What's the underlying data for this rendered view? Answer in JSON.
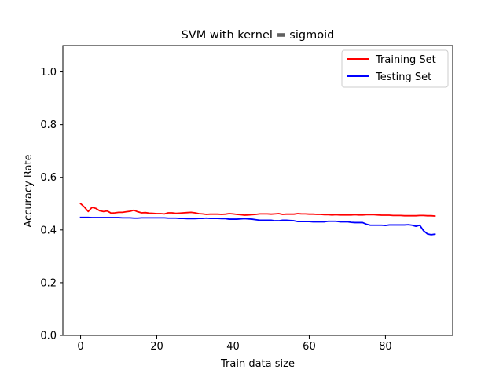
{
  "chart_data": {
    "type": "line",
    "title": "SVM with kernel = sigmoid",
    "xlabel": "Train data size",
    "ylabel": "Accuracy Rate",
    "xlim": [
      -4.65,
      97.65
    ],
    "ylim": [
      0.0,
      1.1
    ],
    "xticks": [
      0,
      20,
      40,
      60,
      80
    ],
    "xtick_labels": [
      "0",
      "20",
      "40",
      "60",
      "80"
    ],
    "yticks": [
      0.0,
      0.2,
      0.4,
      0.6,
      0.8,
      1.0
    ],
    "ytick_labels": [
      "0.0",
      "0.2",
      "0.4",
      "0.6",
      "0.8",
      "1.0"
    ],
    "grid": false,
    "legend_position": "top-right",
    "series": [
      {
        "name": "Training Set",
        "color": "#ff0000",
        "x": [
          0,
          1,
          2,
          3,
          4,
          5,
          6,
          7,
          8,
          9,
          10,
          11,
          12,
          13,
          14,
          15,
          16,
          17,
          18,
          19,
          20,
          21,
          22,
          23,
          24,
          25,
          26,
          27,
          28,
          29,
          30,
          31,
          32,
          33,
          34,
          35,
          36,
          37,
          38,
          39,
          40,
          41,
          42,
          43,
          44,
          45,
          46,
          47,
          48,
          49,
          50,
          51,
          52,
          53,
          54,
          55,
          56,
          57,
          58,
          59,
          60,
          61,
          62,
          63,
          64,
          65,
          66,
          67,
          68,
          69,
          70,
          71,
          72,
          73,
          74,
          75,
          76,
          77,
          78,
          79,
          80,
          81,
          82,
          83,
          84,
          85,
          86,
          87,
          88,
          89,
          90,
          91,
          92,
          93
        ],
        "values": [
          0.5,
          0.487,
          0.47,
          0.486,
          0.482,
          0.473,
          0.47,
          0.472,
          0.464,
          0.465,
          0.467,
          0.467,
          0.469,
          0.471,
          0.475,
          0.469,
          0.465,
          0.466,
          0.464,
          0.463,
          0.462,
          0.462,
          0.461,
          0.465,
          0.465,
          0.463,
          0.464,
          0.465,
          0.466,
          0.467,
          0.465,
          0.462,
          0.461,
          0.459,
          0.46,
          0.46,
          0.46,
          0.459,
          0.46,
          0.462,
          0.461,
          0.459,
          0.458,
          0.456,
          0.457,
          0.458,
          0.459,
          0.461,
          0.461,
          0.461,
          0.46,
          0.461,
          0.462,
          0.459,
          0.46,
          0.46,
          0.46,
          0.462,
          0.461,
          0.461,
          0.46,
          0.46,
          0.459,
          0.459,
          0.458,
          0.458,
          0.457,
          0.458,
          0.457,
          0.457,
          0.457,
          0.457,
          0.458,
          0.457,
          0.457,
          0.458,
          0.458,
          0.458,
          0.457,
          0.456,
          0.456,
          0.456,
          0.455,
          0.455,
          0.455,
          0.454,
          0.454,
          0.454,
          0.454,
          0.455,
          0.455,
          0.454,
          0.454,
          0.453
        ]
      },
      {
        "name": "Testing Set",
        "color": "#0000ff",
        "x": [
          0,
          1,
          2,
          3,
          4,
          5,
          6,
          7,
          8,
          9,
          10,
          11,
          12,
          13,
          14,
          15,
          16,
          17,
          18,
          19,
          20,
          21,
          22,
          23,
          24,
          25,
          26,
          27,
          28,
          29,
          30,
          31,
          32,
          33,
          34,
          35,
          36,
          37,
          38,
          39,
          40,
          41,
          42,
          43,
          44,
          45,
          46,
          47,
          48,
          49,
          50,
          51,
          52,
          53,
          54,
          55,
          56,
          57,
          58,
          59,
          60,
          61,
          62,
          63,
          64,
          65,
          66,
          67,
          68,
          69,
          70,
          71,
          72,
          73,
          74,
          75,
          76,
          77,
          78,
          79,
          80,
          81,
          82,
          83,
          84,
          85,
          86,
          87,
          88,
          89,
          90,
          91,
          92,
          93
        ],
        "values": [
          0.448,
          0.448,
          0.448,
          0.447,
          0.447,
          0.447,
          0.447,
          0.447,
          0.447,
          0.447,
          0.447,
          0.446,
          0.446,
          0.446,
          0.445,
          0.445,
          0.446,
          0.446,
          0.446,
          0.446,
          0.446,
          0.446,
          0.446,
          0.445,
          0.445,
          0.445,
          0.444,
          0.444,
          0.443,
          0.443,
          0.443,
          0.444,
          0.444,
          0.445,
          0.444,
          0.444,
          0.444,
          0.443,
          0.443,
          0.441,
          0.441,
          0.441,
          0.442,
          0.443,
          0.442,
          0.441,
          0.439,
          0.437,
          0.437,
          0.437,
          0.437,
          0.435,
          0.435,
          0.437,
          0.437,
          0.436,
          0.435,
          0.432,
          0.432,
          0.432,
          0.432,
          0.431,
          0.431,
          0.431,
          0.431,
          0.433,
          0.433,
          0.433,
          0.431,
          0.431,
          0.431,
          0.429,
          0.428,
          0.428,
          0.428,
          0.422,
          0.418,
          0.418,
          0.418,
          0.418,
          0.417,
          0.419,
          0.419,
          0.419,
          0.419,
          0.419,
          0.42,
          0.418,
          0.414,
          0.418,
          0.397,
          0.385,
          0.382,
          0.384
        ]
      }
    ]
  }
}
